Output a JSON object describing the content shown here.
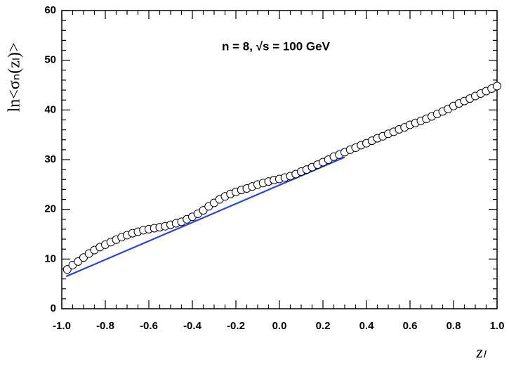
{
  "chart_data": {
    "type": "scatter",
    "annotation": "n = 8,  √s = 100 GeV",
    "x_label": "zₗ",
    "y_label": "ln<σₙ(zₗ)>",
    "xlim": [
      -1.0,
      1.0
    ],
    "ylim": [
      0,
      60
    ],
    "xticks": [
      {
        "value": -1.0,
        "label": "-1.0"
      },
      -0.8,
      -0.6,
      -0.4,
      -0.2,
      {
        "value": 0,
        "label": "0.0"
      },
      0.2,
      0.4,
      0.6,
      0.8,
      {
        "value": 1.0,
        "label": "1.0"
      }
    ],
    "yticks": [
      0,
      10,
      20,
      30,
      40,
      50,
      60
    ],
    "xminorticks": [
      -0.95,
      -0.9,
      -0.85,
      -0.75,
      -0.7,
      -0.65,
      -0.55,
      -0.5,
      -0.45,
      -0.35,
      -0.3,
      -0.25,
      -0.15,
      -0.1,
      -0.05,
      0.05,
      0.1,
      0.15,
      0.25,
      0.3,
      0.35,
      0.45,
      0.5,
      0.55,
      0.65,
      0.7,
      0.75,
      0.85,
      0.9,
      0.95
    ],
    "yminorticks": [
      2,
      4,
      6,
      8,
      12,
      14,
      16,
      18,
      22,
      24,
      26,
      28,
      32,
      34,
      36,
      38,
      42,
      44,
      46,
      48,
      52,
      54,
      56,
      58
    ],
    "series": [
      {
        "kind": "points",
        "color": "#000000",
        "x": [
          -0.975,
          -0.95,
          -0.925,
          -0.9,
          -0.875,
          -0.85,
          -0.825,
          -0.8,
          -0.775,
          -0.75,
          -0.725,
          -0.7,
          -0.675,
          -0.65,
          -0.625,
          -0.6,
          -0.575,
          -0.55,
          -0.525,
          -0.5,
          -0.475,
          -0.45,
          -0.425,
          -0.4,
          -0.375,
          -0.35,
          -0.325,
          -0.3,
          -0.275,
          -0.25,
          -0.225,
          -0.2,
          -0.175,
          -0.15,
          -0.125,
          -0.1,
          -0.075,
          -0.05,
          -0.025,
          0,
          0.025,
          0.05,
          0.075,
          0.1,
          0.125,
          0.15,
          0.175,
          0.2,
          0.225,
          0.25,
          0.275,
          0.3,
          0.325,
          0.35,
          0.375,
          0.4,
          0.425,
          0.45,
          0.475,
          0.5,
          0.525,
          0.55,
          0.575,
          0.6,
          0.625,
          0.65,
          0.675,
          0.7,
          0.725,
          0.75,
          0.775,
          0.8,
          0.825,
          0.85,
          0.875,
          0.9,
          0.925,
          0.95,
          0.975,
          1.0
        ],
        "values": [
          7.9,
          8.8,
          9.5,
          10.3,
          11.1,
          11.8,
          12.4,
          12.9,
          13.4,
          13.9,
          14.4,
          14.8,
          15.2,
          15.5,
          15.8,
          16.0,
          16.2,
          16.4,
          16.6,
          16.9,
          17.2,
          17.5,
          18.0,
          18.5,
          19.1,
          19.8,
          20.6,
          21.3,
          22.0,
          22.6,
          23.1,
          23.5,
          23.9,
          24.2,
          24.6,
          25.0,
          25.3,
          25.6,
          25.9,
          26.1,
          26.4,
          26.7,
          27.1,
          27.6,
          28.0,
          28.5,
          29.0,
          29.5,
          30.0,
          30.6,
          31.0,
          31.5,
          32.0,
          32.4,
          32.9,
          33.3,
          33.8,
          34.3,
          34.7,
          35.2,
          35.6,
          36.1,
          36.5,
          37.0,
          37.4,
          37.8,
          38.2,
          38.7,
          39.2,
          39.7,
          40.2,
          40.8,
          41.3,
          41.8,
          42.3,
          42.8,
          43.3,
          43.8,
          44.3,
          44.8
        ]
      },
      {
        "kind": "line",
        "color": "#2b44d8",
        "x": [
          -0.98,
          0.3
        ],
        "values": [
          6.5,
          30.5
        ]
      }
    ]
  }
}
